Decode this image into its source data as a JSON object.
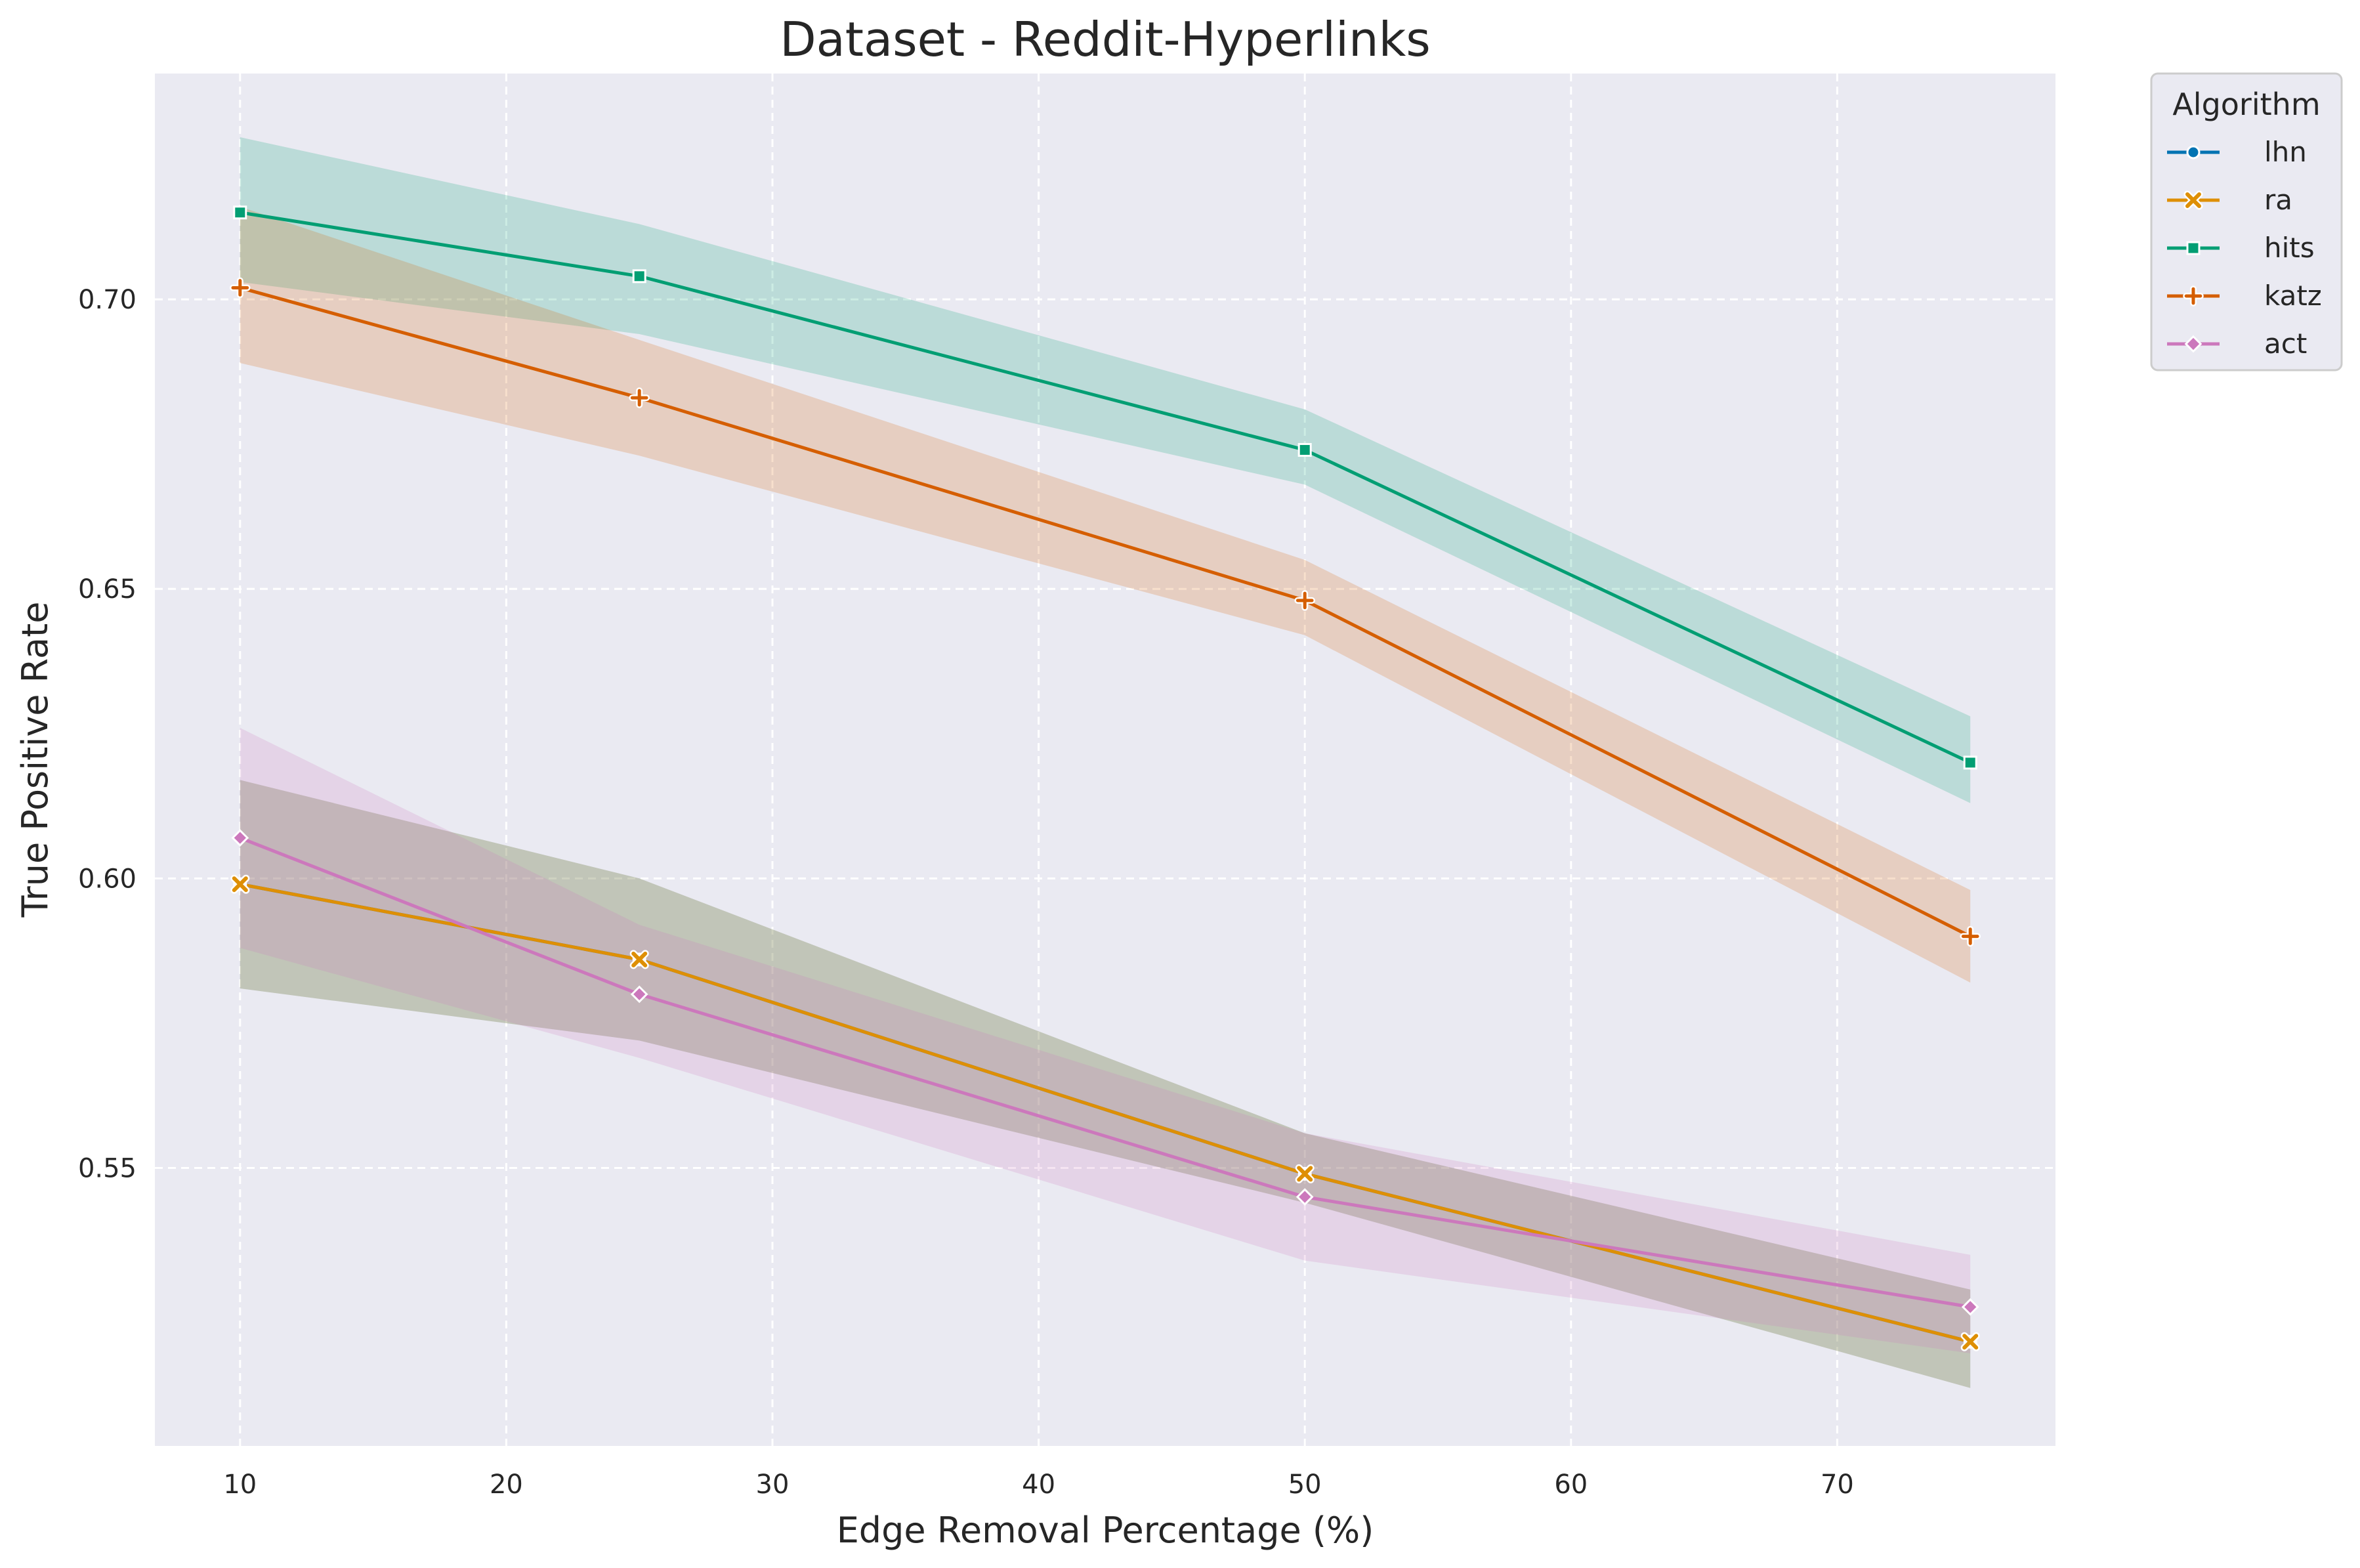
{
  "chart_data": {
    "type": "line",
    "title": "Dataset - Reddit-Hyperlinks",
    "xlabel": "Edge Removal Percentage (%)",
    "ylabel": "True Positive Rate",
    "xlim": [
      6.8,
      78.2
    ],
    "ylim": [
      0.502,
      0.739
    ],
    "xticks": [
      10,
      20,
      30,
      40,
      50,
      60,
      70
    ],
    "yticks": [
      0.55,
      0.6,
      0.65,
      0.7
    ],
    "ytick_labels": [
      "0.55",
      "0.60",
      "0.65",
      "0.70"
    ],
    "grid": true,
    "legend": {
      "title": "Algorithm",
      "placement": "outside-top-right"
    },
    "x": [
      10,
      25,
      50,
      75
    ],
    "series": [
      {
        "name": "lhn",
        "color": "#0173b2",
        "marker": "circle",
        "values": [
          0.599,
          0.586,
          0.549,
          0.52
        ],
        "lower": [
          0.581,
          0.572,
          0.544,
          0.512
        ],
        "upper": [
          0.617,
          0.6,
          0.556,
          0.529
        ]
      },
      {
        "name": "ra",
        "color": "#de8f05",
        "marker": "x",
        "values": [
          0.599,
          0.586,
          0.549,
          0.52
        ],
        "lower": [
          0.581,
          0.572,
          0.544,
          0.512
        ],
        "upper": [
          0.617,
          0.6,
          0.556,
          0.529
        ]
      },
      {
        "name": "hits",
        "color": "#029e73",
        "marker": "square",
        "values": [
          0.715,
          0.704,
          0.674,
          0.62
        ],
        "lower": [
          0.703,
          0.694,
          0.668,
          0.613
        ],
        "upper": [
          0.728,
          0.713,
          0.681,
          0.628
        ]
      },
      {
        "name": "katz",
        "color": "#d55e00",
        "marker": "plus",
        "values": [
          0.702,
          0.683,
          0.648,
          0.59
        ],
        "lower": [
          0.689,
          0.673,
          0.642,
          0.582
        ],
        "upper": [
          0.716,
          0.693,
          0.655,
          0.598
        ]
      },
      {
        "name": "act",
        "color": "#cc78bc",
        "marker": "diamond",
        "values": [
          0.607,
          0.58,
          0.545,
          0.526
        ],
        "lower": [
          0.588,
          0.569,
          0.534,
          0.518
        ],
        "upper": [
          0.626,
          0.592,
          0.556,
          0.535
        ]
      }
    ]
  }
}
